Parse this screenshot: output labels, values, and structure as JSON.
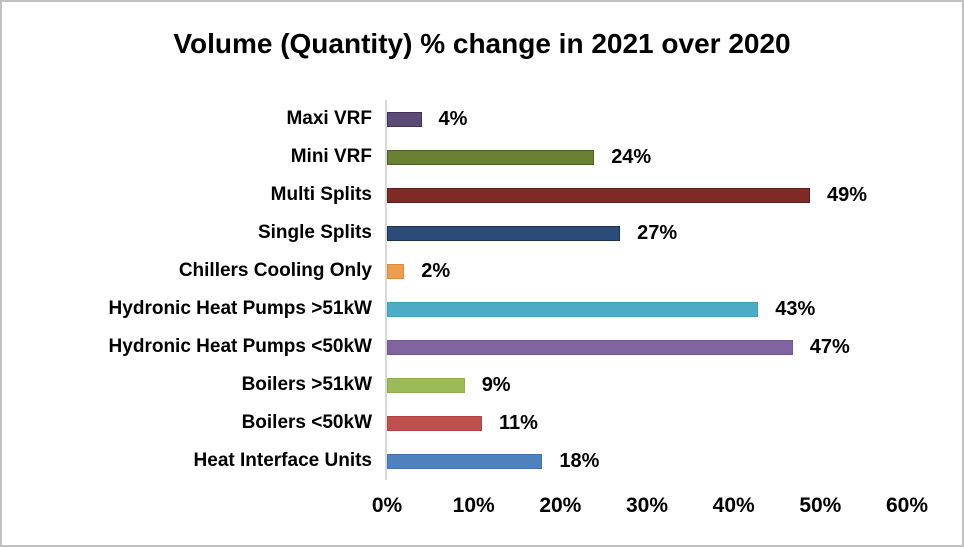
{
  "frame": {
    "background_color": "#FFFFFF",
    "border_color": "#C0C0C0"
  },
  "chart_data": {
    "type": "bar",
    "orientation": "horizontal",
    "title": "Volume (Quantity) % change in 2021 over 2020",
    "categories": [
      "Maxi VRF",
      "Mini VRF",
      "Multi Splits",
      "Single Splits",
      "Chillers Cooling Only",
      "Hydronic Heat Pumps >51kW",
      "Hydronic Heat Pumps <50kW",
      "Boilers >51kW",
      "Boilers <50kW",
      "Heat Interface Units"
    ],
    "values": [
      4,
      24,
      49,
      27,
      2,
      43,
      47,
      9,
      11,
      18
    ],
    "value_labels": [
      "4%",
      "24%",
      "49%",
      "27%",
      "2%",
      "43%",
      "47%",
      "9%",
      "11%",
      "18%"
    ],
    "bar_colors": [
      "#5C4A77",
      "#6A8033",
      "#7F2A27",
      "#2B4B79",
      "#EE9C4F",
      "#4BACC6",
      "#8064A2",
      "#9BBB59",
      "#C0504D",
      "#4F81BD"
    ],
    "bar_border_colors": [
      "#3F3154",
      "#4E6022",
      "#5E1F1C",
      "#1C3356",
      "#E08A38",
      "#3FA0BA",
      "#745896",
      "#8FAF4D",
      "#B44441",
      "#4375B1"
    ],
    "x_ticks": [
      "0%",
      "10%",
      "20%",
      "30%",
      "40%",
      "50%",
      "60%"
    ],
    "xlim": [
      0,
      60
    ],
    "xlabel": "",
    "ylabel": "",
    "grid": false,
    "legend": "none",
    "axis_line_color": "#D9D9D9",
    "data_labels": "outside-end"
  }
}
